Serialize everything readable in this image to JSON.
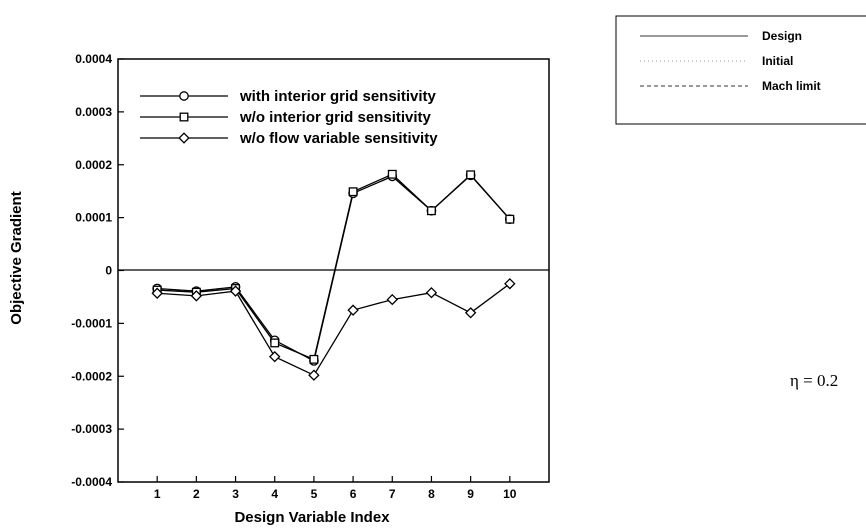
{
  "chart_data": {
    "type": "line",
    "xlabel": "Design Variable Index",
    "ylabel": "Objective Gradient",
    "x": [
      1,
      2,
      3,
      4,
      5,
      6,
      7,
      8,
      9,
      10
    ],
    "xlim": [
      0,
      11
    ],
    "ylim": [
      -0.0004,
      0.0004
    ],
    "xticks": [
      "1",
      "2",
      "3",
      "4",
      "5",
      "6",
      "7",
      "8",
      "9",
      "10"
    ],
    "yticks": [
      {
        "value": 0.0004,
        "label": "0.0004"
      },
      {
        "value": 0.0003,
        "label": "0.0003"
      },
      {
        "value": 0.0002,
        "label": "0.0002"
      },
      {
        "value": 0.0001,
        "label": "0.0001"
      },
      {
        "value": 0,
        "label": "0"
      },
      {
        "value": -0.0001,
        "label": "-0.0001"
      },
      {
        "value": -0.0002,
        "label": "-0.0002"
      },
      {
        "value": -0.0003,
        "label": "-0.0003"
      },
      {
        "value": -0.0004,
        "label": "-0.0004"
      }
    ],
    "zero_line_value": 1e-06,
    "grid": false,
    "legend_position": "top-left",
    "series": [
      {
        "name": "with interior grid sensitivity",
        "marker": "circle",
        "values": [
          -3.4e-05,
          -3.9e-05,
          -3.1e-05,
          -0.000132,
          -0.000171,
          0.000146,
          0.000178,
          0.000113,
          0.00018,
          9.7e-05
        ]
      },
      {
        "name": "w/o interior grid sensitivity",
        "marker": "square",
        "values": [
          -3.7e-05,
          -4.1e-05,
          -3.4e-05,
          -0.000137,
          -0.000168,
          0.000149,
          0.000182,
          0.000113,
          0.000181,
          9.7e-05
        ]
      },
      {
        "name": "w/o flow variable sensitivity",
        "marker": "diamond",
        "values": [
          -4.3e-05,
          -4.8e-05,
          -3.9e-05,
          -0.000163,
          -0.000198,
          -7.5e-05,
          -5.5e-05,
          -4.2e-05,
          -8e-05,
          -2.5e-05
        ]
      }
    ]
  },
  "side_legend": {
    "items": [
      {
        "label": "Design",
        "style": "solid"
      },
      {
        "label": "Initial",
        "style": "dotted"
      },
      {
        "label": "Mach limit",
        "style": "dashed"
      }
    ]
  },
  "eta_label": "η = 0.2"
}
